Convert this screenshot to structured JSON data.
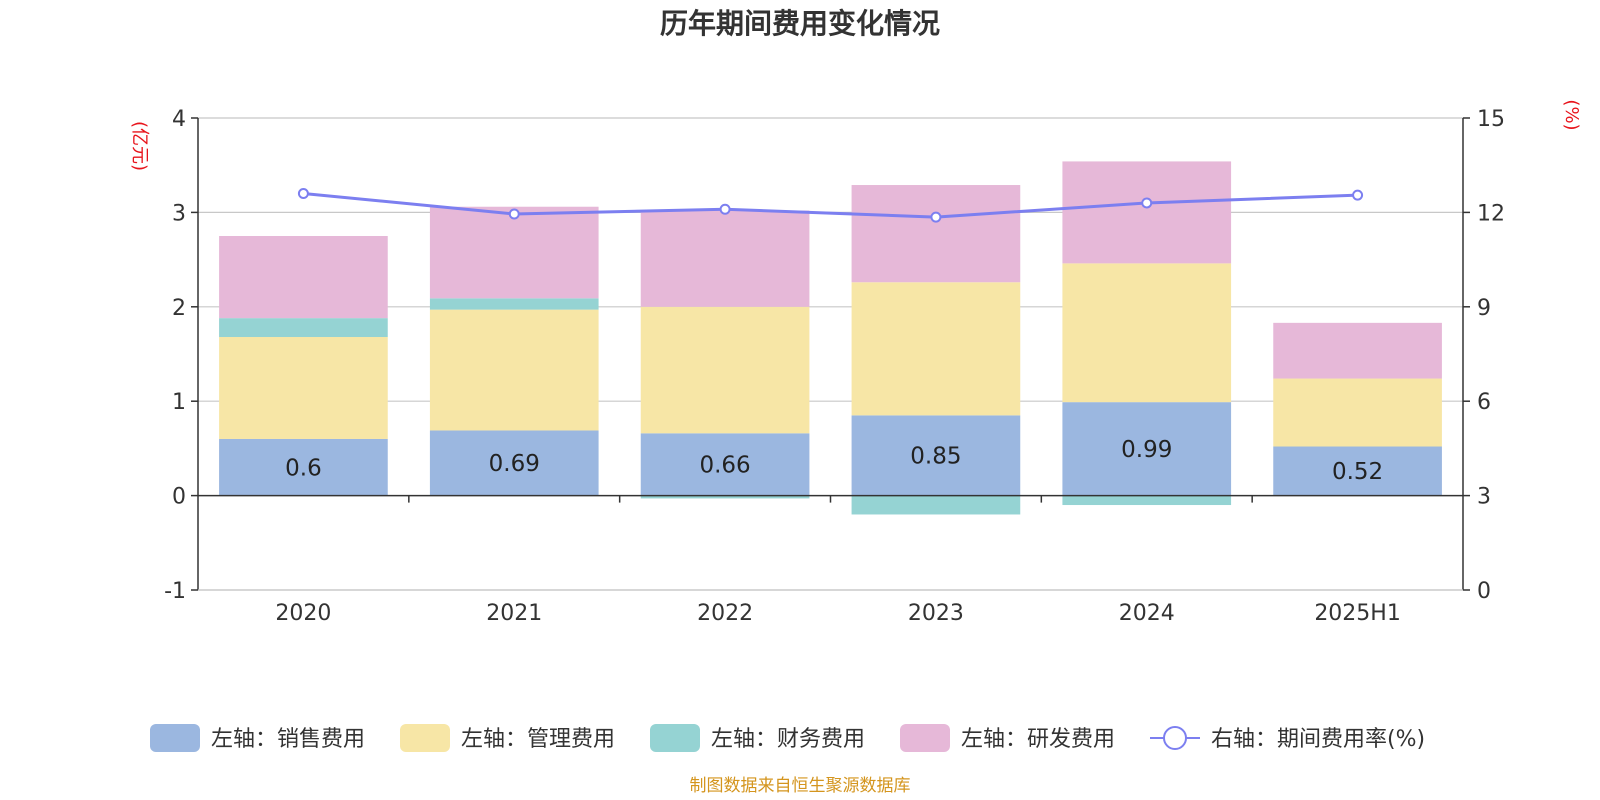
{
  "title": "历年期间费用变化情况",
  "left_unit": "(亿元)",
  "right_unit": "(%)",
  "source": "制图数据来自恒生聚源数据库",
  "colors": {
    "sales": "#9bb7e0",
    "admin": "#f7e6a6",
    "finance": "#95d3d3",
    "rd": "#e6b8d8",
    "rate_line": "#7c7ff0",
    "axis": "#333333",
    "grid": "#c8c8c8"
  },
  "chart_data": {
    "type": "bar",
    "stacked": true,
    "categories": [
      "2020",
      "2021",
      "2022",
      "2023",
      "2024",
      "2025H1"
    ],
    "ylim_left": [
      -1,
      4
    ],
    "left_ticks": [
      "-1",
      "0",
      "1",
      "2",
      "3",
      "4"
    ],
    "ylim_right": [
      0,
      15
    ],
    "right_ticks": [
      "0",
      "3",
      "6",
      "9",
      "12",
      "15"
    ],
    "grid": true,
    "legend_position": "bottom",
    "series": [
      {
        "key": "sales",
        "name": "左轴：销售费用",
        "axis": "left",
        "type": "bar",
        "values": [
          0.6,
          0.69,
          0.66,
          0.85,
          0.99,
          0.52
        ],
        "labels": [
          "0.6",
          "0.69",
          "0.66",
          "0.85",
          "0.99",
          "0.52"
        ]
      },
      {
        "key": "admin",
        "name": "左轴：管理费用",
        "axis": "left",
        "type": "bar",
        "values": [
          1.08,
          1.28,
          1.34,
          1.41,
          1.47,
          0.72
        ]
      },
      {
        "key": "finance",
        "name": "左轴：财务费用",
        "axis": "left",
        "type": "bar",
        "values": [
          0.2,
          0.12,
          -0.03,
          -0.2,
          -0.1,
          0.0
        ]
      },
      {
        "key": "rd",
        "name": "左轴：研发费用",
        "axis": "left",
        "type": "bar",
        "values": [
          0.87,
          0.97,
          1.02,
          1.03,
          1.08,
          0.59
        ]
      },
      {
        "key": "rate_line",
        "name": "右轴：期间费用率(%)",
        "axis": "right",
        "type": "line",
        "values": [
          12.6,
          11.95,
          12.1,
          11.85,
          12.3,
          12.55
        ]
      }
    ]
  }
}
